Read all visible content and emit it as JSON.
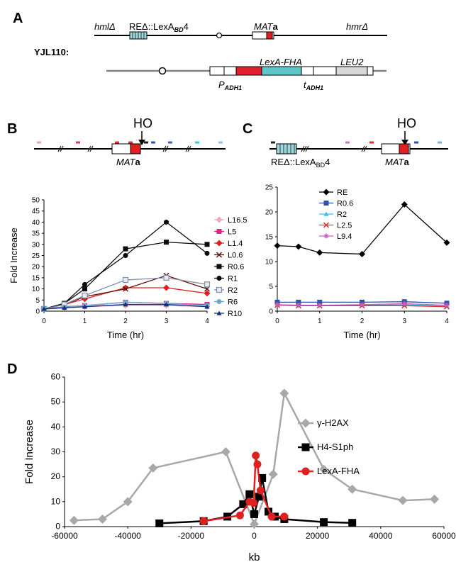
{
  "panel_a": {
    "label": "A",
    "strain": "YJL110:",
    "top_hml": "hmlΔ",
    "top_re_prefix": "REΔ::LexA",
    "top_re_sub": "BD",
    "top_re_suffix": "4",
    "top_mat": "MAT",
    "top_mat_b": "a",
    "top_hmr": "hmrΔ",
    "lexa_fha": "LexA-FHA",
    "leu2": "LEU2",
    "p_main": "P",
    "p_sub": "ADH1",
    "t_main": "t",
    "t_sub": "ADH1"
  },
  "panel_b": {
    "label": "B",
    "ho": "HO",
    "mat": "MAT",
    "mat_b": "a",
    "marker_colors": [
      "#e8a0c0",
      "#c0407a",
      "#e03030",
      "#c04040",
      "#202020",
      "#3050b0",
      "#4060c0",
      "#40c0e0",
      "#a0c0e0"
    ]
  },
  "panel_c": {
    "label": "C",
    "ho": "HO",
    "re_prefix": "REΔ::LexA",
    "re_sub": "BD",
    "re_suffix": "4",
    "mat": "MAT",
    "mat_b": "a",
    "marker_colors": [
      "#202020",
      "#c080c0",
      "#e03030",
      "#3050b0",
      "#80b0e0"
    ]
  },
  "panel_d": {
    "label": "D"
  },
  "chart_data": [
    {
      "id": "B",
      "type": "line",
      "xlabel": "Time (hr)",
      "ylabel": "Fold Increase",
      "xlim": [
        0,
        4
      ],
      "ylim": [
        0,
        50
      ],
      "xticks": [
        0,
        1,
        2,
        3,
        4
      ],
      "yticks": [
        0,
        5,
        10,
        15,
        20,
        25,
        30,
        35,
        40,
        45,
        50
      ],
      "x": [
        0,
        0.5,
        1,
        2,
        3,
        4
      ],
      "legend": "right",
      "series": [
        {
          "name": "L16.5",
          "color": "#f0a8c8",
          "marker": "diamond",
          "values": [
            1,
            1.5,
            2,
            2.5,
            2.5,
            2
          ]
        },
        {
          "name": "L5",
          "color": "#e0208a",
          "marker": "square",
          "values": [
            1,
            2,
            2.5,
            4,
            3.5,
            3
          ]
        },
        {
          "name": "L1.4",
          "color": "#e02020",
          "marker": "diamond",
          "values": [
            1,
            3,
            5.5,
            10.5,
            10.5,
            8
          ]
        },
        {
          "name": "L0.6",
          "color": "#601010",
          "marker": "x",
          "values": [
            1,
            3,
            6.5,
            10,
            16,
            10
          ]
        },
        {
          "name": "R0.6",
          "color": "#0a0a0a",
          "marker": "square",
          "values": [
            1,
            3.5,
            10,
            28,
            31,
            30
          ]
        },
        {
          "name": "R1",
          "color": "#0a0a0a",
          "marker": "circle",
          "values": [
            1,
            3.5,
            12,
            25,
            40,
            26
          ]
        },
        {
          "name": "R2",
          "color": "#8090a8",
          "marker": "square_open",
          "values": [
            1,
            3,
            7,
            14,
            15,
            12
          ]
        },
        {
          "name": "R6",
          "color": "#70a8c8",
          "marker": "circle",
          "values": [
            1,
            1.8,
            2.5,
            4,
            3.5,
            2.5
          ]
        },
        {
          "name": "R10",
          "color": "#103080",
          "marker": "triangle",
          "values": [
            1,
            1.5,
            2,
            3,
            3,
            2
          ]
        }
      ]
    },
    {
      "id": "C",
      "type": "line",
      "xlabel": "Time (hr)",
      "ylabel": "",
      "xlim": [
        0,
        4
      ],
      "ylim": [
        0,
        25
      ],
      "xticks": [
        0,
        1,
        2,
        3,
        4
      ],
      "yticks": [
        0,
        5,
        10,
        15,
        20,
        25
      ],
      "x": [
        0,
        0.5,
        1,
        2,
        3,
        4
      ],
      "legend": "top-left",
      "series": [
        {
          "name": "RE",
          "color": "#000000",
          "marker": "diamond",
          "values": [
            13.2,
            13,
            11.8,
            11.5,
            21.5,
            13.8
          ]
        },
        {
          "name": "R0.6",
          "color": "#3050b0",
          "marker": "square",
          "values": [
            1.8,
            1.8,
            1.8,
            1.8,
            1.9,
            1.6
          ]
        },
        {
          "name": "R2",
          "color": "#40c0e0",
          "marker": "triangle",
          "values": [
            1.3,
            1.2,
            1.2,
            1.2,
            1.3,
            1.0
          ]
        },
        {
          "name": "L2.5",
          "color": "#e03030",
          "marker": "x",
          "values": [
            1.2,
            1.1,
            1.1,
            1.1,
            1.1,
            0.9
          ]
        },
        {
          "name": "L9.4",
          "color": "#c060c0",
          "marker": "star",
          "values": [
            1.3,
            1.2,
            1.2,
            1.3,
            1.5,
            1.2
          ]
        }
      ]
    },
    {
      "id": "D",
      "type": "line",
      "xlabel": "kb",
      "ylabel": "Fold Increase",
      "xlim": [
        -60000,
        60000
      ],
      "ylim": [
        0,
        60
      ],
      "xticks": [
        -60000,
        -40000,
        -20000,
        0,
        20000,
        40000,
        60000
      ],
      "yticks": [
        0,
        10,
        20,
        30,
        40,
        50,
        60
      ],
      "legend": "right",
      "series": [
        {
          "name": "γ-H2AX",
          "color": "#a8a8a8",
          "marker": "diamond",
          "points": [
            [
              -57000,
              2.5
            ],
            [
              -48000,
              3
            ],
            [
              -40000,
              10
            ],
            [
              -32000,
              23.5
            ],
            [
              -9000,
              30
            ],
            [
              0,
              1
            ],
            [
              6000,
              21
            ],
            [
              9500,
              53.5
            ],
            [
              22000,
              23
            ],
            [
              31000,
              15
            ],
            [
              47000,
              10.5
            ],
            [
              57000,
              11
            ]
          ]
        },
        {
          "name": "H4-S1ph",
          "color": "#000000",
          "marker": "square",
          "points": [
            [
              -30000,
              1.3
            ],
            [
              -16000,
              2.2
            ],
            [
              -8500,
              4
            ],
            [
              -3500,
              9
            ],
            [
              -1500,
              13
            ],
            [
              0,
              5
            ],
            [
              1500,
              12
            ],
            [
              2500,
              19.5
            ],
            [
              4500,
              6
            ],
            [
              6500,
              4
            ],
            [
              9500,
              3
            ],
            [
              22000,
              1.8
            ],
            [
              31000,
              1.5
            ]
          ]
        },
        {
          "name": "LexA-FHA",
          "color": "#e02020",
          "marker": "circle",
          "points": [
            [
              -16000,
              2.2
            ],
            [
              -4500,
              4.5
            ],
            [
              -1500,
              10
            ],
            [
              -200,
              9.5
            ],
            [
              500,
              28.5
            ],
            [
              1000,
              25
            ],
            [
              2000,
              14.5
            ],
            [
              5500,
              4
            ],
            [
              9500,
              4
            ]
          ]
        }
      ]
    }
  ]
}
